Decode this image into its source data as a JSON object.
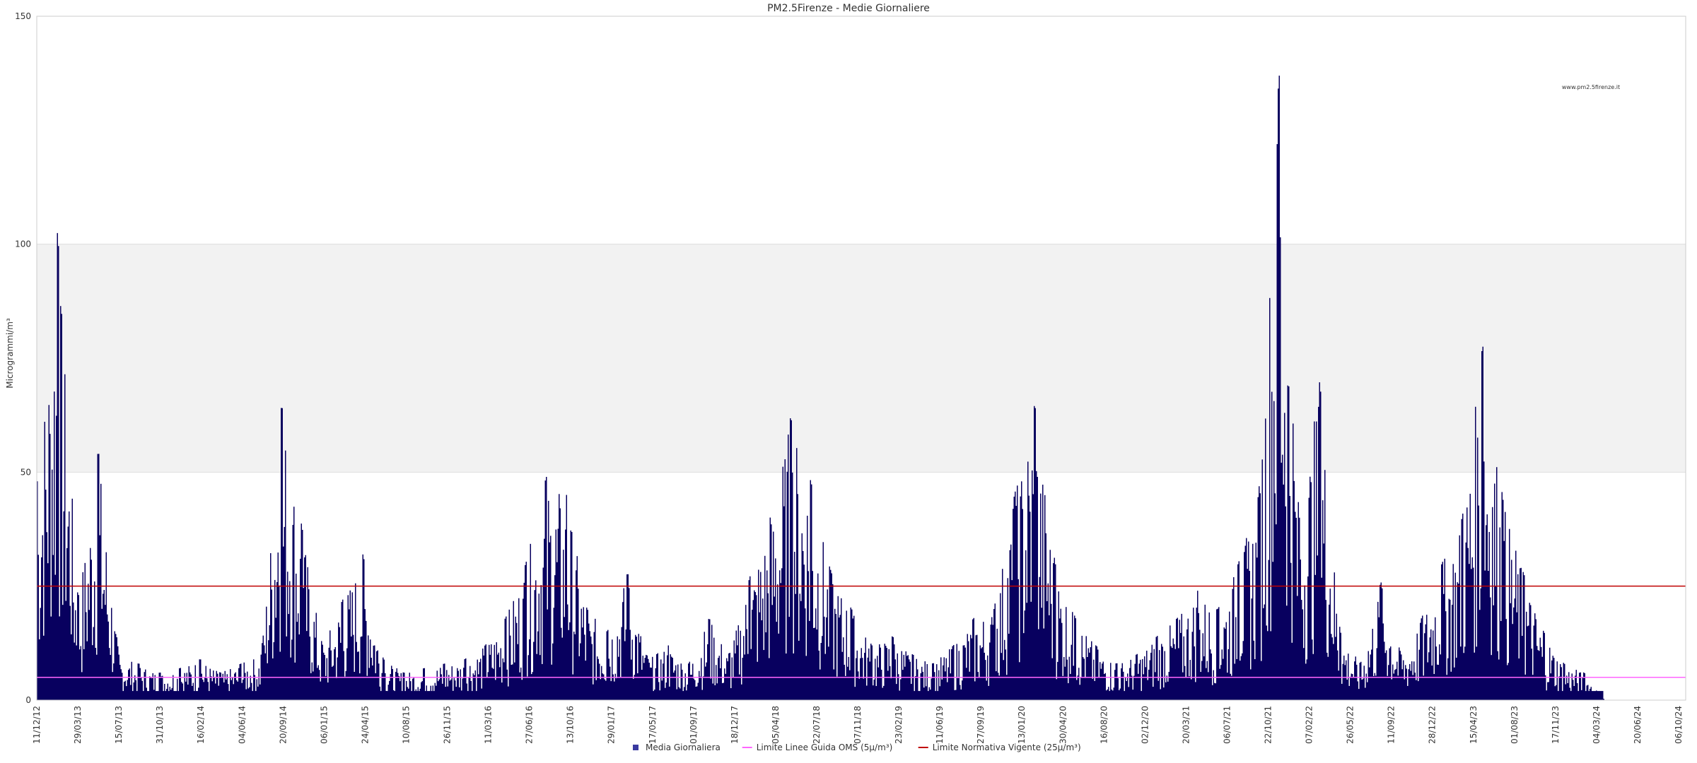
{
  "chart_data": {
    "type": "bar",
    "title": "PM2.5Firenze - Medie Giornaliere",
    "ylabel": "Microgrammi/m³",
    "watermark": "www.pm2.5firenze.it",
    "ylim": [
      0,
      150
    ],
    "y_ticks": [
      "0",
      "50",
      "100",
      "150"
    ],
    "x_tick_labels": [
      "11/12/12",
      "29/03/13",
      "15/07/13",
      "31/10/13",
      "16/02/14",
      "04/06/14",
      "20/09/14",
      "06/01/15",
      "24/04/15",
      "10/08/15",
      "26/11/15",
      "11/03/16",
      "27/06/16",
      "13/10/16",
      "29/01/17",
      "17/05/17",
      "01/09/17",
      "18/12/17",
      "05/04/18",
      "22/07/18",
      "07/11/18",
      "23/02/19",
      "11/06/19",
      "27/09/19",
      "13/01/20",
      "30/04/20",
      "16/08/20",
      "02/12/20",
      "20/03/21",
      "06/07/21",
      "22/10/21",
      "07/02/22",
      "26/05/22",
      "11/09/22",
      "28/12/22",
      "15/04/23",
      "01/08/23",
      "17/11/23",
      "04/03/24",
      "20/06/24",
      "06/10/24"
    ],
    "shaded_band": {
      "from": 50,
      "to": 100,
      "color": "#f2f2f2"
    },
    "series": [
      {
        "name": "Media Giornaliera",
        "kind": "bar",
        "color": "#08005f",
        "values_note": "daily means sampled every 14 days",
        "x_tick_index_values": [
          0,
          0.5,
          1,
          1.5,
          2,
          2.5,
          3,
          3.5,
          4,
          4.5,
          5,
          5.5,
          6,
          6.5,
          7,
          7.5,
          8,
          8.5,
          9,
          9.5,
          10,
          10.5,
          11,
          11.5,
          12,
          12.5,
          13,
          13.5,
          14,
          14.5,
          15,
          15.5,
          16,
          16.5,
          17,
          17.5,
          18,
          18.5,
          19,
          19.5,
          20,
          20.5,
          21,
          21.5,
          22,
          22.5,
          23,
          23.5,
          24,
          24.5,
          25,
          25.5,
          26,
          26.5,
          27,
          27.5,
          28,
          28.5,
          29,
          29.5,
          30,
          30.5,
          31,
          31.5,
          32,
          32.5,
          33,
          33.5,
          34,
          34.5,
          35,
          35.5,
          36,
          36.5,
          37,
          37.5,
          38,
          38.5,
          39,
          39.5,
          40,
          40.5
        ],
        "values": [
          48,
          103,
          22,
          55,
          10,
          8,
          6,
          7,
          9,
          6,
          8,
          10,
          65,
          38,
          12,
          22,
          32,
          9,
          6,
          7,
          8,
          9,
          12,
          18,
          30,
          49,
          45,
          20,
          15,
          28,
          9,
          12,
          8,
          18,
          10,
          27,
          40,
          62,
          48,
          28,
          20,
          12,
          14,
          10,
          8,
          12,
          18,
          20,
          45,
          65,
          30,
          18,
          12,
          8,
          10,
          14,
          18,
          24,
          20,
          30,
          45,
          138,
          40,
          70,
          15,
          8,
          26,
          10,
          18,
          30,
          40,
          78,
          44,
          28,
          15,
          8,
          6,
          0,
          0,
          0,
          0,
          0
        ]
      },
      {
        "name": "Limite Linee Guida OMS (5μ/m³)",
        "kind": "line",
        "value": 5,
        "color": "#ff66ff"
      },
      {
        "name": "Limite Normativa Vigente (25μ/m³)",
        "kind": "line",
        "value": 25,
        "color": "#c00000"
      }
    ],
    "legend_position": "bottom-center"
  }
}
